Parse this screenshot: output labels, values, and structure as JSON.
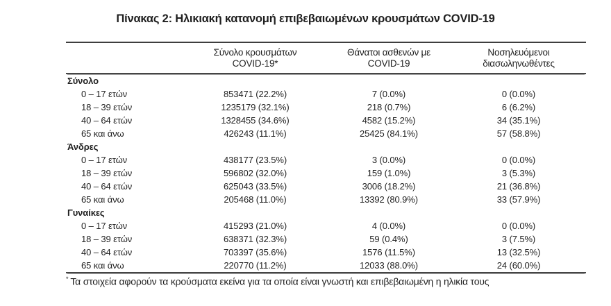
{
  "title": "Πίνακας 2: Ηλικιακή κατανομή επιβεβαιωμένων κρουσμάτων COVID-19",
  "colors": {
    "text": "#1f1f1f",
    "rule_line": "#3e3e3e",
    "background": "#ffffff"
  },
  "table": {
    "columns": {
      "cases": {
        "line1": "Σύνολο κρουσμάτων",
        "line2": "COVID-19*"
      },
      "deaths": {
        "line1": "Θάνατοι ασθενών με",
        "line2": "COVID-19"
      },
      "intubated": {
        "line1": "Νοσηλευόμενοι",
        "line2": "διασωληνωθέντες"
      }
    },
    "sections": [
      {
        "label": "Σύνολο",
        "rows": [
          {
            "label": "0 – 17 ετών",
            "cases": "853471 (22.2%)",
            "deaths": "7 (0.0%)",
            "intubated": "0 (0.0%)"
          },
          {
            "label": "18 – 39 ετών",
            "cases": "1235179 (32.1%)",
            "deaths": "218 (0.7%)",
            "intubated": "6 (6.2%)"
          },
          {
            "label": "40 – 64 ετών",
            "cases": "1328455 (34.6%)",
            "deaths": "4582 (15.2%)",
            "intubated": "34 (35.1%)"
          },
          {
            "label": "65 και άνω",
            "cases": "426243 (11.1%)",
            "deaths": "25425 (84.1%)",
            "intubated": "57 (58.8%)"
          }
        ]
      },
      {
        "label": "Άνδρες",
        "rows": [
          {
            "label": "0 – 17 ετών",
            "cases": "438177 (23.5%)",
            "deaths": "3 (0.0%)",
            "intubated": "0 (0.0%)"
          },
          {
            "label": "18 – 39 ετών",
            "cases": "596802 (32.0%)",
            "deaths": "159 (1.0%)",
            "intubated": "3 (5.3%)"
          },
          {
            "label": "40 – 64 ετών",
            "cases": "625043 (33.5%)",
            "deaths": "3006 (18.2%)",
            "intubated": "21 (36.8%)"
          },
          {
            "label": "65 και άνω",
            "cases": "205468 (11.0%)",
            "deaths": "13392 (80.9%)",
            "intubated": "33 (57.9%)"
          }
        ]
      },
      {
        "label": "Γυναίκες",
        "rows": [
          {
            "label": "0 – 17 ετών",
            "cases": "415293 (21.0%)",
            "deaths": "4 (0.0%)",
            "intubated": "0 (0.0%)"
          },
          {
            "label": "18 – 39 ετών",
            "cases": "638371 (32.3%)",
            "deaths": "59 (0.4%)",
            "intubated": "3 (7.5%)"
          },
          {
            "label": "40 – 64 ετών",
            "cases": "703397 (35.6%)",
            "deaths": "1576 (11.5%)",
            "intubated": "13 (32.5%)"
          },
          {
            "label": "65 και άνω",
            "cases": "220770 (11.2%)",
            "deaths": "12033 (88.0%)",
            "intubated": "24 (60.0%)"
          }
        ]
      }
    ]
  },
  "footnote": {
    "marker": "*",
    "text": "Τα στοιχεία αφορούν τα κρούσματα εκείνα για τα οποία είναι γνωστή και επιβεβαιωμένη η ηλικία τους"
  }
}
